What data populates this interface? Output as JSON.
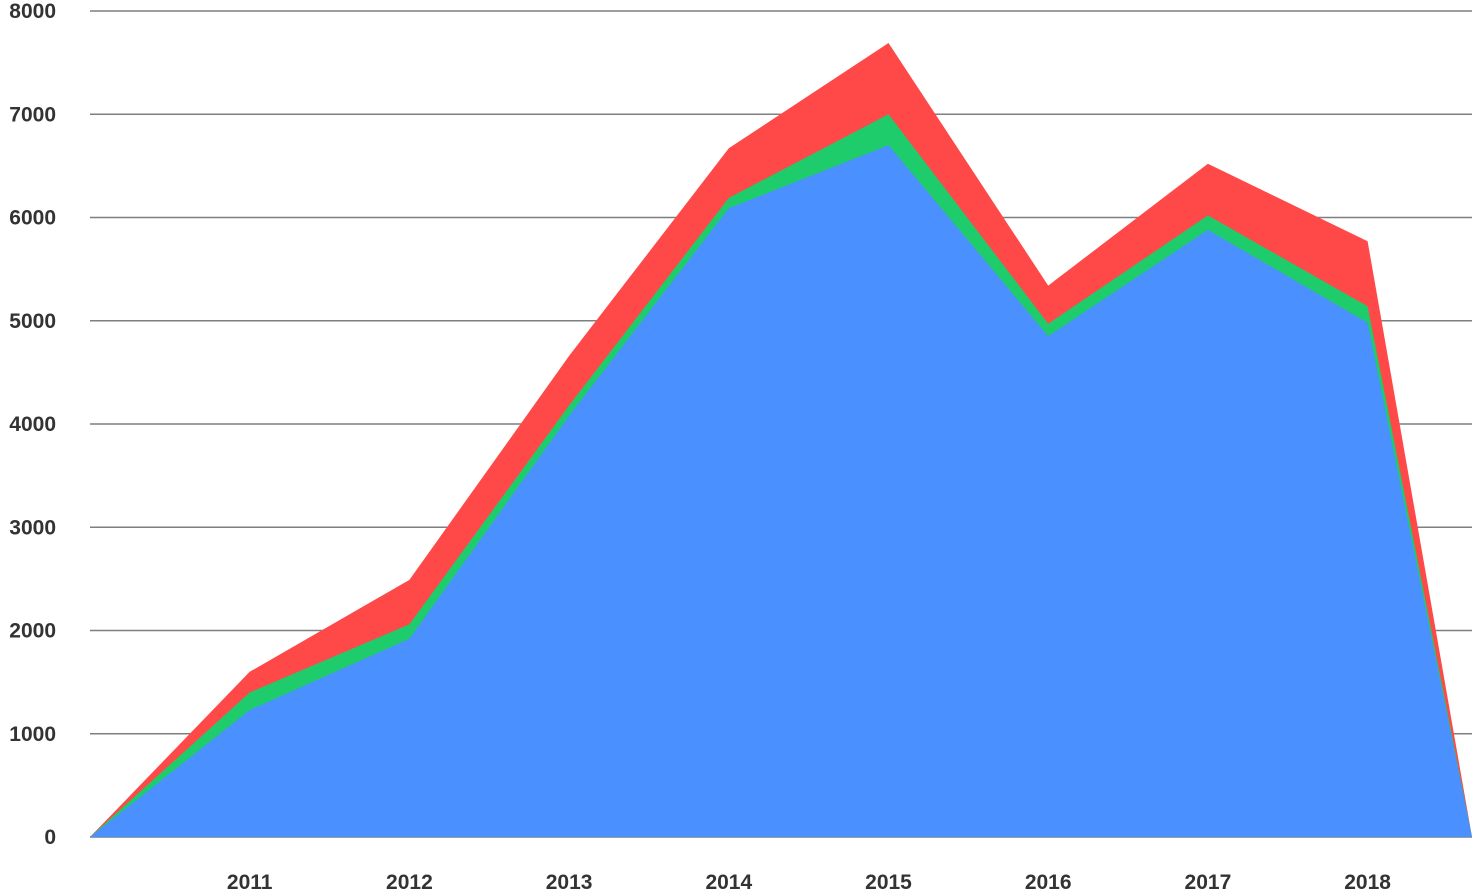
{
  "chart_data": {
    "type": "area",
    "stacked": true,
    "x": [
      "",
      "2011",
      "2012",
      "2013",
      "2014",
      "2015",
      "2016",
      "2017",
      "2018",
      ""
    ],
    "x_tick_labels": [
      "2011",
      "2012",
      "2013",
      "2014",
      "2015",
      "2016",
      "2017",
      "2018"
    ],
    "y_tick_labels": [
      "0",
      "1000",
      "2000",
      "3000",
      "4000",
      "5000",
      "6000",
      "7000",
      "8000"
    ],
    "ylim": [
      0,
      8000
    ],
    "grid": true,
    "legend": "none",
    "title": "",
    "xlabel": "",
    "ylabel": "",
    "series": [
      {
        "color": "#4a90ff",
        "values": [
          0,
          1230,
          1920,
          4080,
          6090,
          6700,
          4850,
          5880,
          4980,
          0
        ]
      },
      {
        "color": "#1fcc6b",
        "values": [
          0,
          170,
          140,
          100,
          100,
          300,
          120,
          140,
          160,
          0
        ]
      },
      {
        "color": "#ff4848",
        "values": [
          0,
          200,
          430,
          480,
          480,
          690,
          370,
          500,
          630,
          0
        ]
      }
    ]
  }
}
